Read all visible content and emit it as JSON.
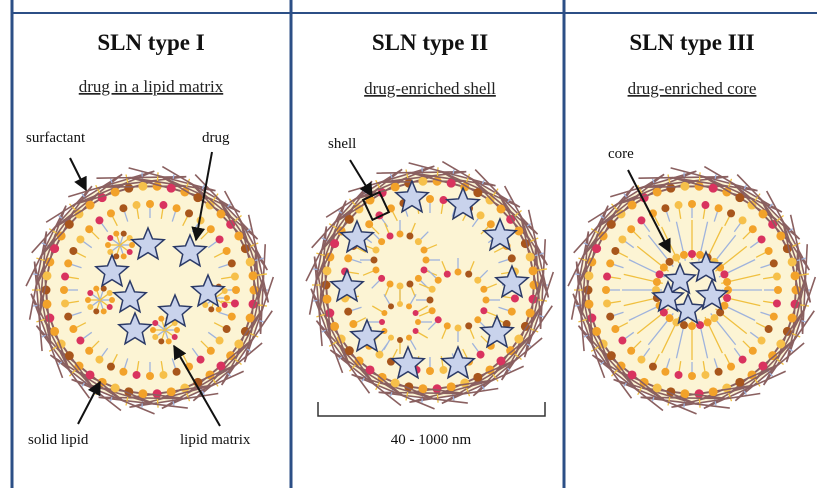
{
  "panels": [
    {
      "title": "SLN type I",
      "subtitle": "drug in a lipid matrix",
      "labels": [
        "surfactant",
        "drug",
        "solid lipid",
        "lipid matrix"
      ]
    },
    {
      "title": "SLN type II",
      "subtitle": "drug-enriched shell",
      "labels": [
        "shell",
        "40 - 1000 nm"
      ]
    },
    {
      "title": "SLN type III",
      "subtitle": "drug-enriched core",
      "labels": [
        "core"
      ]
    }
  ]
}
